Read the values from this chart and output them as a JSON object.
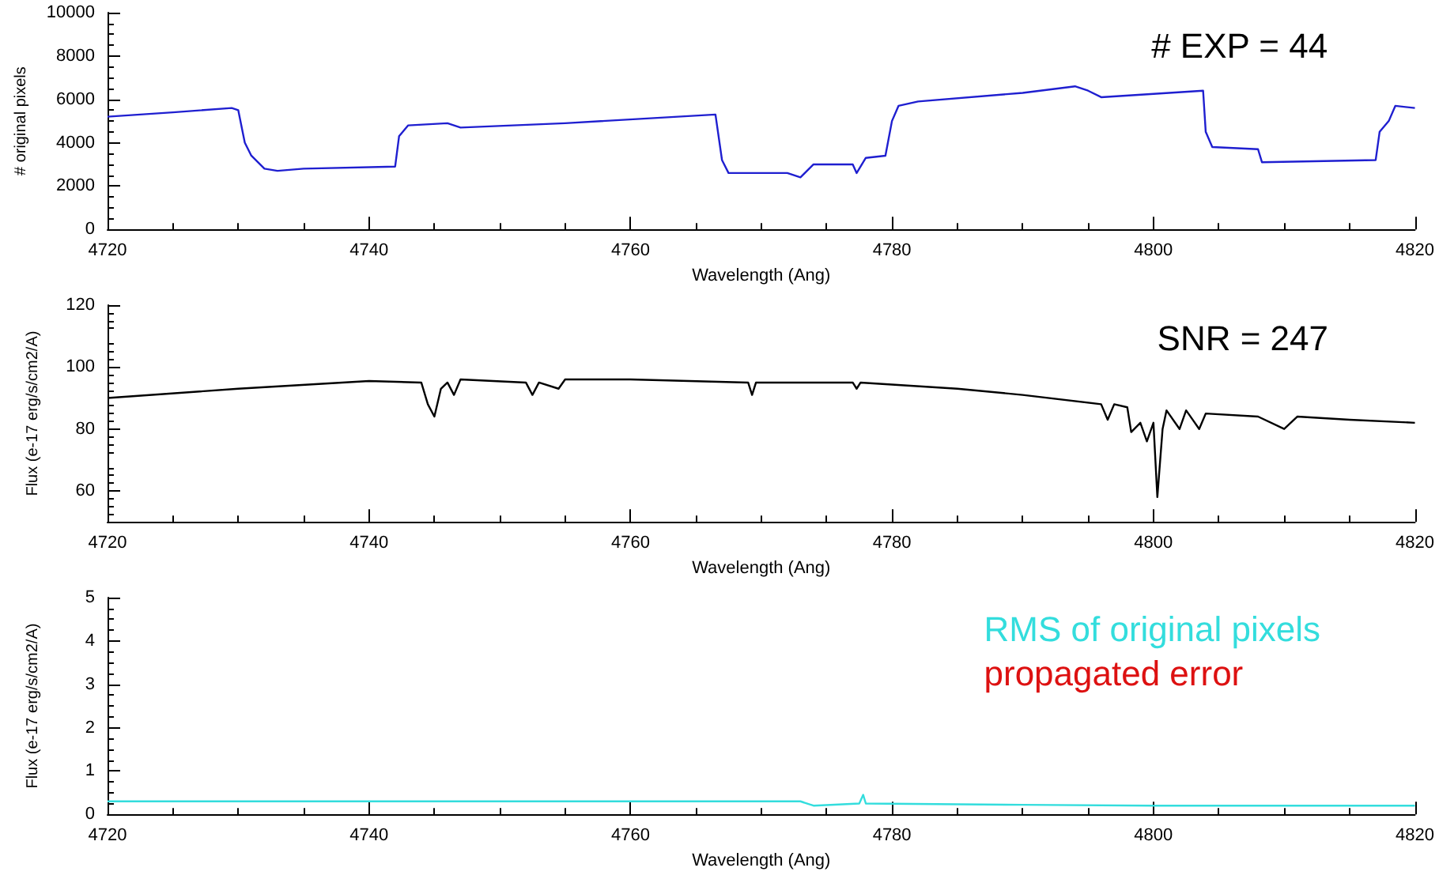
{
  "chart_data": [
    {
      "type": "line",
      "annotations": [
        "# EXP = 44"
      ],
      "xlabel": "Wavelength (Ang)",
      "ylabel": "# original pixels",
      "xlim": [
        4720,
        4820
      ],
      "xticks": [
        4720,
        4740,
        4760,
        4780,
        4800,
        4820
      ],
      "ylim": [
        0,
        10000
      ],
      "yticks": [
        0,
        2000,
        4000,
        6000,
        8000,
        10000
      ],
      "grid": false,
      "legend": false,
      "series": [
        {
          "color": "#1f1fd0",
          "x": [
            4720,
            4725,
            4729.5,
            4730,
            4730.5,
            4731,
            4732,
            4733,
            4735,
            4742,
            4742.3,
            4743,
            4746,
            4747,
            4755,
            4766.5,
            4767,
            4767.5,
            4770,
            4772,
            4773,
            4774,
            4777,
            4777.3,
            4778,
            4779.5,
            4780,
            4780.5,
            4782,
            4790,
            4794,
            4795,
            4796,
            4803.8,
            4804,
            4804.5,
            4808,
            4808.3,
            4817,
            4817.3,
            4818,
            4818.5,
            4820
          ],
          "values": [
            5200,
            5400,
            5600,
            5500,
            4000,
            3400,
            2800,
            2700,
            2800,
            2900,
            4300,
            4800,
            4900,
            4700,
            4900,
            5300,
            3200,
            2600,
            2600,
            2600,
            2400,
            3000,
            3000,
            2600,
            3300,
            3400,
            5000,
            5700,
            5900,
            6300,
            6600,
            6400,
            6100,
            6400,
            4500,
            3800,
            3700,
            3100,
            3200,
            4500,
            5000,
            5700,
            5600
          ]
        }
      ]
    },
    {
      "type": "line",
      "annotations": [
        "SNR = 247"
      ],
      "xlabel": "Wavelength (Ang)",
      "ylabel": "Flux (e-17 erg/s/cm2/A)",
      "xlim": [
        4720,
        4820
      ],
      "xticks": [
        4720,
        4740,
        4760,
        4780,
        4800,
        4820
      ],
      "ylim": [
        50,
        120
      ],
      "yticks": [
        60,
        80,
        100,
        120
      ],
      "grid": false,
      "legend": false,
      "series": [
        {
          "color": "#000000",
          "x": [
            4720,
            4730,
            4740,
            4744,
            4744.5,
            4745,
            4745.5,
            4746,
            4746.5,
            4747,
            4752,
            4752.5,
            4753,
            4754.5,
            4755,
            4760,
            4769,
            4769.3,
            4769.6,
            4777,
            4777.3,
            4777.6,
            4785,
            4790,
            4796,
            4796.5,
            4797,
            4798,
            4798.3,
            4799,
            4799.5,
            4800,
            4800.3,
            4800.7,
            4801,
            4802,
            4802.5,
            4803,
            4803.5,
            4804,
            4808,
            4810,
            4811,
            4815,
            4820
          ],
          "values": [
            90,
            93,
            95.5,
            95,
            88,
            84,
            93,
            95,
            91,
            96,
            95,
            91,
            95,
            93,
            96,
            96,
            95,
            91,
            95,
            95,
            93,
            95,
            93,
            91,
            88,
            83,
            88,
            87,
            79,
            82,
            76,
            82,
            58,
            80,
            86,
            80,
            86,
            83,
            80,
            85,
            84,
            80,
            84,
            83,
            82
          ]
        }
      ]
    },
    {
      "type": "line",
      "xlabel": "Wavelength (Ang)",
      "ylabel": "Flux (e-17 erg/s/cm2/A)",
      "xlim": [
        4720,
        4820
      ],
      "xticks": [
        4720,
        4740,
        4760,
        4780,
        4800,
        4820
      ],
      "ylim": [
        0,
        5
      ],
      "yticks": [
        0,
        1,
        2,
        3,
        4,
        5
      ],
      "grid": false,
      "legend": "top right",
      "series": [
        {
          "name": "RMS of original pixels",
          "color": "#33dddd",
          "x": [
            4720,
            4740,
            4760,
            4773,
            4774,
            4777.5,
            4777.8,
            4778,
            4790,
            4800,
            4820
          ],
          "values": [
            0.3,
            0.3,
            0.3,
            0.3,
            0.2,
            0.25,
            0.45,
            0.25,
            0.22,
            0.2,
            0.2
          ]
        },
        {
          "name": "propagated error",
          "color": "#dd1111"
        }
      ]
    }
  ]
}
